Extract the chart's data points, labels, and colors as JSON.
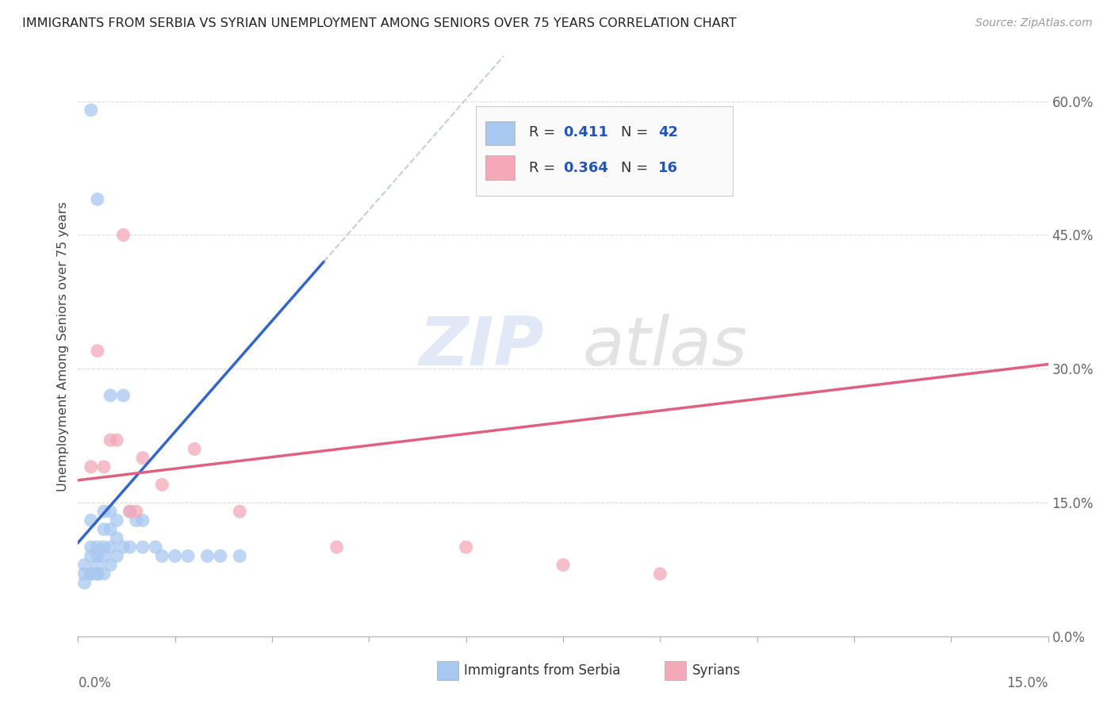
{
  "title": "IMMIGRANTS FROM SERBIA VS SYRIAN UNEMPLOYMENT AMONG SENIORS OVER 75 YEARS CORRELATION CHART",
  "source": "Source: ZipAtlas.com",
  "ylabel": "Unemployment Among Seniors over 75 years",
  "ytick_values": [
    0.0,
    0.15,
    0.3,
    0.45,
    0.6
  ],
  "xlim": [
    0.0,
    0.15
  ],
  "ylim": [
    0.0,
    0.65
  ],
  "serbia_R": 0.411,
  "serbia_N": 42,
  "syrian_R": 0.364,
  "syrian_N": 16,
  "serbia_color": "#a8c8f0",
  "syrian_color": "#f4a8b8",
  "serbia_line_color": "#3366cc",
  "syrian_line_color": "#e06080",
  "serbia_x": [
    0.001,
    0.001,
    0.001,
    0.002,
    0.002,
    0.002,
    0.002,
    0.002,
    0.003,
    0.003,
    0.003,
    0.003,
    0.003,
    0.004,
    0.004,
    0.004,
    0.004,
    0.004,
    0.005,
    0.005,
    0.005,
    0.005,
    0.005,
    0.006,
    0.006,
    0.006,
    0.007,
    0.007,
    0.008,
    0.008,
    0.009,
    0.01,
    0.01,
    0.012,
    0.013,
    0.015,
    0.017,
    0.02,
    0.022,
    0.025,
    0.002,
    0.003
  ],
  "serbia_y": [
    0.08,
    0.07,
    0.06,
    0.59,
    0.13,
    0.1,
    0.09,
    0.07,
    0.49,
    0.1,
    0.09,
    0.08,
    0.07,
    0.14,
    0.12,
    0.1,
    0.09,
    0.07,
    0.27,
    0.14,
    0.12,
    0.1,
    0.08,
    0.13,
    0.11,
    0.09,
    0.27,
    0.1,
    0.14,
    0.1,
    0.13,
    0.13,
    0.1,
    0.1,
    0.09,
    0.09,
    0.09,
    0.09,
    0.09,
    0.09,
    0.07,
    0.07
  ],
  "syrian_x": [
    0.002,
    0.003,
    0.004,
    0.005,
    0.006,
    0.007,
    0.008,
    0.009,
    0.01,
    0.013,
    0.018,
    0.025,
    0.04,
    0.06,
    0.075,
    0.09
  ],
  "syrian_y": [
    0.19,
    0.32,
    0.19,
    0.22,
    0.22,
    0.45,
    0.14,
    0.14,
    0.2,
    0.17,
    0.21,
    0.14,
    0.1,
    0.1,
    0.08,
    0.07
  ],
  "serbia_trendline_x0": 0.0,
  "serbia_trendline_y0": 0.105,
  "serbia_trendline_x1": 0.038,
  "serbia_trendline_y1": 0.42,
  "syrian_trendline_x0": 0.0,
  "syrian_trendline_y0": 0.175,
  "syrian_trendline_x1": 0.15,
  "syrian_trendline_y1": 0.305,
  "watermark_zip": "ZIP",
  "watermark_atlas": "atlas"
}
